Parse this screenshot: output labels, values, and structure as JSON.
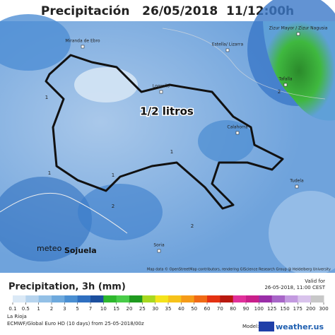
{
  "header": {
    "title": "Precipitación   26/05/2018  11/12:00h"
  },
  "map": {
    "annotation": "1/2 litros",
    "places": [
      "Miranda de Ebro",
      "Zizur Mayor / Zizur Nagusia",
      "Estella/ Lizarra",
      "Tafalla",
      "Logroño",
      "Calahorra",
      "Tudela",
      "Soria"
    ],
    "contour_labels": [
      "1",
      "1",
      "1",
      "1",
      "2",
      "2",
      "2"
    ],
    "credit": "Map data © OpenStreetMap contributors, rendering GIScience Research Group @ Heidelberg University",
    "logo": [
      "meteo",
      "Sojuela"
    ]
  },
  "legend": {
    "title": "Precipitation, 3h (mm)",
    "valid_label": "Valid for",
    "valid_time": "26-05-2018, 11:00 CEST",
    "ticks": [
      "0.1",
      "0.5",
      "1",
      "2",
      "3",
      "5",
      "7",
      "10",
      "15",
      "20",
      "25",
      "30",
      "35",
      "40",
      "50",
      "60",
      "70",
      "80",
      "90",
      "100",
      "125",
      "150",
      "175",
      "200",
      "300"
    ],
    "colors": [
      "#dbe9f6",
      "#b7d4ee",
      "#93c0e6",
      "#6ea9dd",
      "#4a8fd2",
      "#2f6fc0",
      "#1c4f9e",
      "#2eb82e",
      "#49cc49",
      "#1f9a1f",
      "#a8d820",
      "#f4e31c",
      "#f6c21a",
      "#f59b18",
      "#f06a15",
      "#e43212",
      "#b8180f",
      "#e0309a",
      "#c91f8a",
      "#9a2ea8",
      "#a866c8",
      "#c39ae0",
      "#d9c3ec",
      "#c8c8c8"
    ]
  },
  "footer": {
    "region": "La Rioja",
    "model_run": "ECMWF/Global Euro HD (10 days) from 25-05-2018/00z",
    "model_label": "Model:",
    "brand": "weather.us"
  }
}
